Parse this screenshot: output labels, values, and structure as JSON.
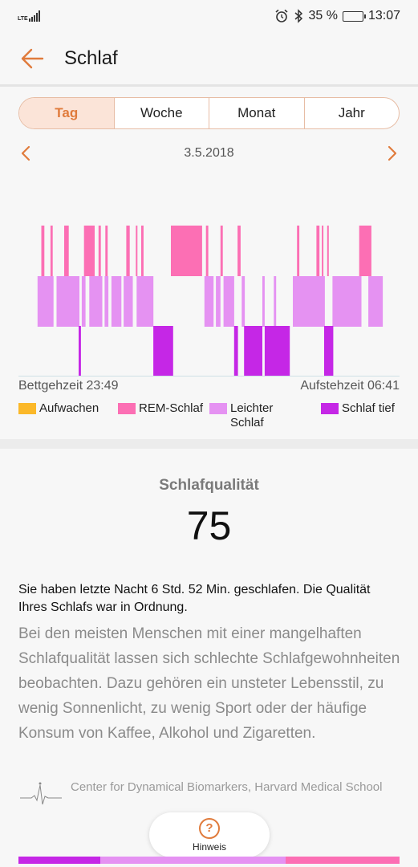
{
  "statusbar": {
    "network": "LTE",
    "battery_percent": "35 %",
    "battery_level": 0.35,
    "time": "13:07",
    "icons": [
      "alarm-icon",
      "bluetooth-icon"
    ]
  },
  "header": {
    "title": "Schlaf"
  },
  "tabs": [
    {
      "label": "Tag",
      "active": true
    },
    {
      "label": "Woche",
      "active": false
    },
    {
      "label": "Monat",
      "active": false
    },
    {
      "label": "Jahr",
      "active": false
    }
  ],
  "date": "3.5.2018",
  "sleep": {
    "bedtime_label": "Bettgehzeit 23:49",
    "wakeup_label": "Aufstehzeit 06:41"
  },
  "legend": [
    {
      "label": "Aufwachen",
      "color": "#fbb829"
    },
    {
      "label": "REM-Schlaf",
      "color": "#fc6fb4"
    },
    {
      "label": "Leichter Schlaf",
      "color": "#e592f2"
    },
    {
      "label": "Schlaf tief",
      "color": "#c527e6"
    }
  ],
  "chart_data": {
    "type": "timeline",
    "x_range": [
      "23:49",
      "06:41"
    ],
    "levels": [
      "REM-Schlaf",
      "Leichter Schlaf",
      "Schlaf tief"
    ],
    "segments": [
      {
        "stage": "REM-Schlaf",
        "start": 0.06,
        "end": 0.068
      },
      {
        "stage": "REM-Schlaf",
        "start": 0.084,
        "end": 0.09
      },
      {
        "stage": "REM-Schlaf",
        "start": 0.12,
        "end": 0.132
      },
      {
        "stage": "REM-Schlaf",
        "start": 0.172,
        "end": 0.2
      },
      {
        "stage": "REM-Schlaf",
        "start": 0.21,
        "end": 0.216
      },
      {
        "stage": "REM-Schlaf",
        "start": 0.228,
        "end": 0.234
      },
      {
        "stage": "REM-Schlaf",
        "start": 0.283,
        "end": 0.292
      },
      {
        "stage": "REM-Schlaf",
        "start": 0.308,
        "end": 0.312
      },
      {
        "stage": "REM-Schlaf",
        "start": 0.322,
        "end": 0.328
      },
      {
        "stage": "REM-Schlaf",
        "start": 0.4,
        "end": 0.482
      },
      {
        "stage": "REM-Schlaf",
        "start": 0.492,
        "end": 0.498
      },
      {
        "stage": "REM-Schlaf",
        "start": 0.53,
        "end": 0.536
      },
      {
        "stage": "REM-Schlaf",
        "start": 0.575,
        "end": 0.583
      },
      {
        "stage": "REM-Schlaf",
        "start": 0.731,
        "end": 0.737
      },
      {
        "stage": "REM-Schlaf",
        "start": 0.782,
        "end": 0.79
      },
      {
        "stage": "REM-Schlaf",
        "start": 0.796,
        "end": 0.8
      },
      {
        "stage": "REM-Schlaf",
        "start": 0.81,
        "end": 0.814
      },
      {
        "stage": "REM-Schlaf",
        "start": 0.894,
        "end": 0.926
      },
      {
        "stage": "Leichter Schlaf",
        "start": 0.05,
        "end": 0.092
      },
      {
        "stage": "Leichter Schlaf",
        "start": 0.1,
        "end": 0.16
      },
      {
        "stage": "Leichter Schlaf",
        "start": 0.166,
        "end": 0.176
      },
      {
        "stage": "Leichter Schlaf",
        "start": 0.186,
        "end": 0.22
      },
      {
        "stage": "Leichter Schlaf",
        "start": 0.226,
        "end": 0.236
      },
      {
        "stage": "Leichter Schlaf",
        "start": 0.244,
        "end": 0.27
      },
      {
        "stage": "Leichter Schlaf",
        "start": 0.276,
        "end": 0.3
      },
      {
        "stage": "Leichter Schlaf",
        "start": 0.31,
        "end": 0.354
      },
      {
        "stage": "Leichter Schlaf",
        "start": 0.488,
        "end": 0.512
      },
      {
        "stage": "Leichter Schlaf",
        "start": 0.518,
        "end": 0.53
      },
      {
        "stage": "Leichter Schlaf",
        "start": 0.538,
        "end": 0.566
      },
      {
        "stage": "Leichter Schlaf",
        "start": 0.586,
        "end": 0.594
      },
      {
        "stage": "Leichter Schlaf",
        "start": 0.64,
        "end": 0.646
      },
      {
        "stage": "Leichter Schlaf",
        "start": 0.67,
        "end": 0.676
      },
      {
        "stage": "Leichter Schlaf",
        "start": 0.72,
        "end": 0.804
      },
      {
        "stage": "Leichter Schlaf",
        "start": 0.824,
        "end": 0.9
      },
      {
        "stage": "Leichter Schlaf",
        "start": 0.918,
        "end": 0.956
      },
      {
        "stage": "Schlaf tief",
        "start": 0.158,
        "end": 0.164
      },
      {
        "stage": "Schlaf tief",
        "start": 0.354,
        "end": 0.406
      },
      {
        "stage": "Schlaf tief",
        "start": 0.566,
        "end": 0.576
      },
      {
        "stage": "Schlaf tief",
        "start": 0.592,
        "end": 0.64
      },
      {
        "stage": "Schlaf tief",
        "start": 0.646,
        "end": 0.712
      },
      {
        "stage": "Schlaf tief",
        "start": 0.802,
        "end": 0.826
      }
    ]
  },
  "quality": {
    "title": "Schlafqualität",
    "score": "75",
    "summary": "Sie haben letzte Nacht 6 Std. 52 Min. geschlafen. Die Qualität Ihres Schlafs war in Ordnung.",
    "advice": "Bei den meisten Menschen mit einer mangelhaften Schlafqualität lassen sich schlechte Schlafgewohnheiten beobachten. Dazu gehören ein unsteter Lebensstil, zu wenig Sonnenlicht, zu wenig Sport oder der häufige Konsum von Kaffee, Alkohol und Zigaretten."
  },
  "source": {
    "text": "Center for Dynamical Biomarkers, Harvard Medical School"
  },
  "hint": {
    "label": "Hinweis"
  },
  "bottom_bar": [
    {
      "color": "#c527e6",
      "fraction": 0.215
    },
    {
      "color": "#e592f2",
      "fraction": 0.485
    },
    {
      "color": "#fc6fb4",
      "fraction": 0.3
    }
  ]
}
